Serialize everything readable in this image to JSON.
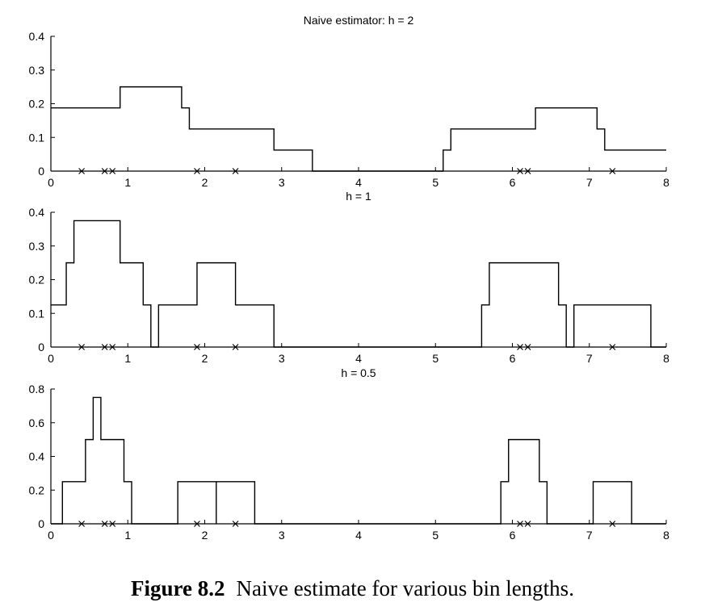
{
  "chart_data": [
    {
      "type": "line",
      "step": true,
      "title": "Naive estimator: h = 2",
      "xlim": [
        0,
        8
      ],
      "ylim": [
        0,
        0.4
      ],
      "xticks": [
        0,
        1,
        2,
        3,
        4,
        5,
        6,
        7,
        8
      ],
      "yticks": [
        0,
        0.1,
        0.2,
        0.3,
        0.4
      ],
      "ytick_labels": [
        "0",
        "0.1",
        "0.2",
        "0.3",
        "0.4"
      ],
      "samples": [
        0.4,
        0.7,
        0.8,
        1.9,
        2.4,
        6.1,
        6.2,
        7.3
      ],
      "steps": [
        [
          0,
          0.1875
        ],
        [
          0.9,
          0.25
        ],
        [
          1.7,
          0.1875
        ],
        [
          1.8,
          0.125
        ],
        [
          2.9,
          0.0625
        ],
        [
          3.4,
          0
        ],
        [
          5.1,
          0.0625
        ],
        [
          5.2,
          0.125
        ],
        [
          6.3,
          0.1875
        ],
        [
          7.1,
          0.125
        ],
        [
          7.2,
          0.0625
        ],
        [
          8,
          0.0625
        ]
      ]
    },
    {
      "type": "line",
      "step": true,
      "title": "h = 1",
      "xlim": [
        0,
        8
      ],
      "ylim": [
        0,
        0.4
      ],
      "xticks": [
        0,
        1,
        2,
        3,
        4,
        5,
        6,
        7,
        8
      ],
      "yticks": [
        0,
        0.1,
        0.2,
        0.3,
        0.4
      ],
      "ytick_labels": [
        "0",
        "0.1",
        "0.2",
        "0.3",
        "0.4"
      ],
      "samples": [
        0.4,
        0.7,
        0.8,
        1.9,
        2.4,
        6.1,
        6.2,
        7.3
      ],
      "steps": [
        [
          0,
          0.125
        ],
        [
          0.2,
          0.25
        ],
        [
          0.3,
          0.375
        ],
        [
          0.9,
          0.25
        ],
        [
          1.2,
          0.125
        ],
        [
          1.3,
          0
        ],
        [
          1.4,
          0.125
        ],
        [
          1.9,
          0.25
        ],
        [
          2.4,
          0.125
        ],
        [
          2.9,
          0
        ],
        [
          5.6,
          0.125
        ],
        [
          5.7,
          0.25
        ],
        [
          6.6,
          0.125
        ],
        [
          6.7,
          0
        ],
        [
          6.8,
          0.125
        ],
        [
          7.8,
          0
        ],
        [
          8,
          0
        ]
      ]
    },
    {
      "type": "line",
      "step": true,
      "title": "h = 0.5",
      "xlim": [
        0,
        8
      ],
      "ylim": [
        0,
        0.8
      ],
      "xticks": [
        0,
        1,
        2,
        3,
        4,
        5,
        6,
        7,
        8
      ],
      "yticks": [
        0,
        0.2,
        0.4,
        0.6,
        0.8
      ],
      "ytick_labels": [
        "0",
        "0.2",
        "0.4",
        "0.6",
        "0.8"
      ],
      "samples": [
        0.4,
        0.7,
        0.8,
        1.9,
        2.4,
        6.1,
        6.2,
        7.3
      ],
      "steps": [
        [
          0,
          0
        ],
        [
          0.15,
          0.25
        ],
        [
          0.45,
          0.5
        ],
        [
          0.55,
          0.75
        ],
        [
          0.65,
          0.5
        ],
        [
          0.95,
          0.25
        ],
        [
          1.05,
          0
        ],
        [
          1.65,
          0.25
        ],
        [
          2.65,
          0
        ],
        [
          5.85,
          0.25
        ],
        [
          5.95,
          0.5
        ],
        [
          6.35,
          0.25
        ],
        [
          6.45,
          0
        ],
        [
          7.05,
          0.25
        ],
        [
          7.55,
          0
        ],
        [
          8,
          0
        ]
      ],
      "dividers": [
        2.15
      ]
    }
  ],
  "caption": {
    "number": "Figure 8.2",
    "text": "Naive estimate for various bin lengths."
  }
}
